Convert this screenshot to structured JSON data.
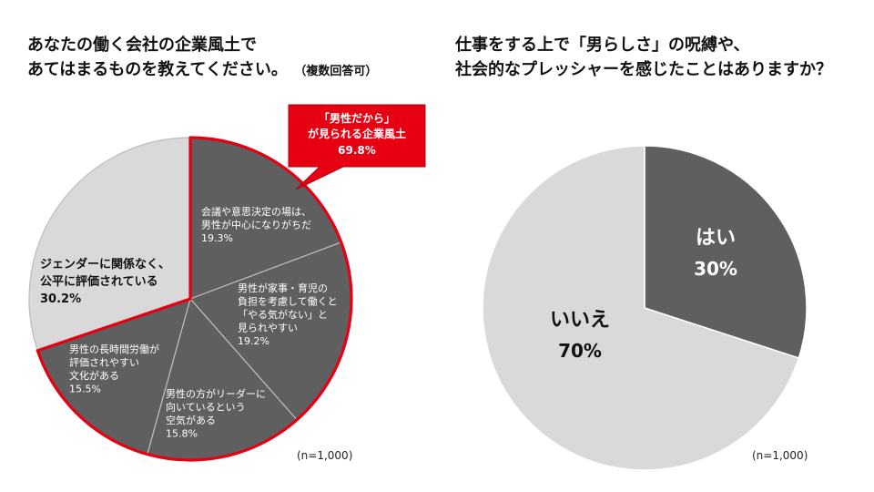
{
  "left": {
    "title_line1": "あなたの働く会社の企業風土で",
    "title_line2": "あてはまるものを教えてください。",
    "title_note": "（複数回答可）",
    "n_note": "(n=1,000)",
    "callout": {
      "line1": "「男性だから」",
      "line2": "が見られる企業風土",
      "line3": "69.8%"
    }
  },
  "right": {
    "title_line1": "仕事をする上で「男らしさ」の呪縛や、",
    "title_line2": "社会的なプレッシャーを感じたことはありますか？",
    "n_note": "(n=1,000)"
  },
  "colors": {
    "dark_slice": "#5f5f5f",
    "light_slice": "#d9d9d9",
    "highlight": "#e60012",
    "white": "#ffffff"
  },
  "chart_data": [
    {
      "type": "pie",
      "title": "あなたの働く会社の企業風土であてはまるものを教えてください。（複数回答可）",
      "slices": [
        {
          "lines": [
            "会議や意思決定の場は、",
            "男性が中心になりがちだ"
          ],
          "value_label": "19.3%",
          "value": 19.3
        },
        {
          "lines": [
            "男性が家事・育児の",
            "負担を考慮して働くと",
            "「やる気がない」と",
            "見られやすい"
          ],
          "value_label": "19.2%",
          "value": 19.2
        },
        {
          "lines": [
            "男性の方がリーダーに",
            "向いているという",
            "空気がある"
          ],
          "value_label": "15.8%",
          "value": 15.8
        },
        {
          "lines": [
            "男性の長時間労働が",
            "評価されやすい",
            "文化がある"
          ],
          "value_label": "15.5%",
          "value": 15.5
        },
        {
          "lines": [
            "ジェンダーに関係なく、",
            "公平に評価されている"
          ],
          "value_label": "30.2%",
          "value": 30.2
        }
      ]
    },
    {
      "type": "pie",
      "title": "仕事をする上で「男らしさ」の呪縛や、社会的なプレッシャーを感じたことはありますか？",
      "slices": [
        {
          "label": "はい",
          "value_label": "30%",
          "value": 30
        },
        {
          "label": "いいえ",
          "value_label": "70%",
          "value": 70
        }
      ]
    }
  ]
}
